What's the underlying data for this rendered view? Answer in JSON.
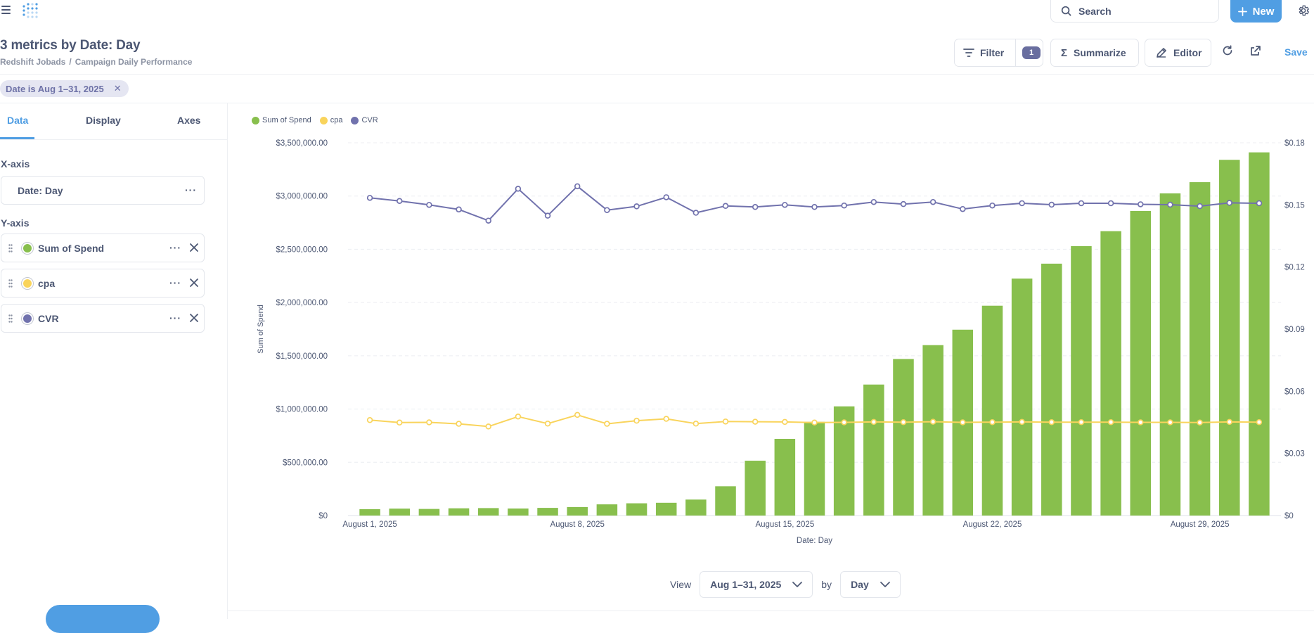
{
  "app": {
    "search_placeholder": "Search",
    "new_label": "New"
  },
  "header": {
    "title": "3 metrics by Date: Day",
    "breadcrumb": [
      "Redshift Jobads",
      "Campaign Daily Performance"
    ],
    "filter_label": "Filter",
    "filter_count": "1",
    "summarize_label": "Summarize",
    "editor_label": "Editor",
    "save_label": "Save"
  },
  "filter_pill": {
    "label": "Date is Aug 1–31, 2025"
  },
  "sidebar": {
    "tabs": [
      "Data",
      "Display",
      "Axes"
    ],
    "active_tab": "Data",
    "x_axis_label": "X-axis",
    "x_field": "Date: Day",
    "y_axis_label": "Y-axis",
    "y_fields": [
      {
        "name": "Sum of Spend",
        "color": "#88bf4d"
      },
      {
        "name": "cpa",
        "color": "#f9d45c"
      },
      {
        "name": "CVR",
        "color": "#7172ad"
      }
    ]
  },
  "chart_data": {
    "type": "bar",
    "xlabel": "Date: Day",
    "ylabel": "Sum of Spend",
    "x_tick_labels": [
      "August 1, 2025",
      "August 8, 2025",
      "August 15, 2025",
      "August 22, 2025",
      "August 29, 2025"
    ],
    "x_tick_days": [
      1,
      8,
      15,
      22,
      29
    ],
    "days": [
      1,
      2,
      3,
      4,
      5,
      6,
      7,
      8,
      9,
      10,
      11,
      12,
      13,
      14,
      15,
      16,
      17,
      18,
      19,
      20,
      21,
      22,
      23,
      24,
      25,
      26,
      27,
      28,
      29,
      30,
      31
    ],
    "y_left_ticks": [
      "$0",
      "$500,000.00",
      "$1,000,000.00",
      "$1,500,000.00",
      "$2,000,000.00",
      "$2,500,000.00",
      "$3,000,000.00",
      "$3,500,000.00"
    ],
    "y_left_range": [
      0,
      3500000
    ],
    "y_right_ticks": [
      "$0",
      "$0.03",
      "$0.06",
      "$0.09",
      "$0.12",
      "$0.15",
      "$0.18"
    ],
    "y_right_range": [
      0,
      0.18
    ],
    "legend": [
      "Sum of Spend",
      "cpa",
      "CVR"
    ],
    "series": [
      {
        "name": "Sum of Spend",
        "kind": "bar",
        "axis": "left",
        "color": "#88bf4d",
        "values": [
          60000,
          65000,
          62000,
          68000,
          70000,
          66000,
          72000,
          80000,
          105000,
          115000,
          120000,
          150000,
          275000,
          515000,
          720000,
          880000,
          1025000,
          1230000,
          1470000,
          1600000,
          1745000,
          1970000,
          2225000,
          2365000,
          2530000,
          2670000,
          2860000,
          3025000,
          3130000,
          3340000,
          3410000
        ]
      },
      {
        "name": "cpa",
        "kind": "line",
        "axis": "right",
        "color": "#f9d45c",
        "values": [
          0.0461,
          0.0449,
          0.045,
          0.0443,
          0.043,
          0.0478,
          0.0444,
          0.0486,
          0.0443,
          0.0458,
          0.0467,
          0.0444,
          0.0454,
          0.0453,
          0.0452,
          0.0449,
          0.045,
          0.0452,
          0.0451,
          0.0453,
          0.045,
          0.0451,
          0.0452,
          0.0451,
          0.0451,
          0.0451,
          0.045,
          0.045,
          0.0449,
          0.0452,
          0.0451
        ]
      },
      {
        "name": "CVR",
        "kind": "line",
        "axis": "right",
        "color": "#7172ad",
        "values": [
          0.1534,
          0.1519,
          0.15,
          0.1478,
          0.1424,
          0.1578,
          0.1448,
          0.159,
          0.1475,
          0.1493,
          0.1537,
          0.1462,
          0.1495,
          0.149,
          0.15,
          0.149,
          0.1497,
          0.1514,
          0.1504,
          0.1514,
          0.148,
          0.1497,
          0.1508,
          0.1501,
          0.1508,
          0.1508,
          0.1503,
          0.1501,
          0.1494,
          0.151,
          0.1508
        ]
      }
    ]
  },
  "viewbar": {
    "view_label": "View",
    "date_range": "Aug 1–31, 2025",
    "by_label": "by",
    "granularity": "Day"
  }
}
